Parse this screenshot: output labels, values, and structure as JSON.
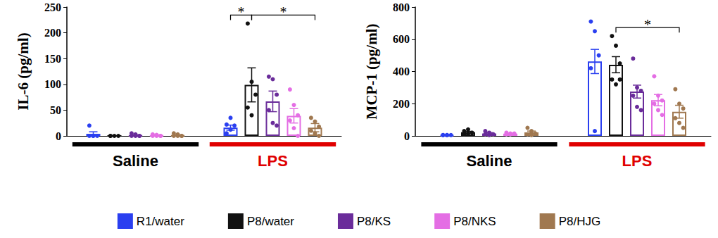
{
  "chart_data": [
    {
      "type": "bar",
      "y_label": "IL-6 (pg/ml)",
      "categories": [
        "Saline",
        "LPS"
      ],
      "ylim": [
        0,
        250
      ],
      "yticks": [
        0,
        50,
        100,
        150,
        200,
        250
      ],
      "grid": false,
      "legend": "bottom",
      "series": [
        {
          "name": "R1/water",
          "color": "#2a3ff0",
          "values": [
            4,
            16
          ],
          "errors": [
            4,
            5
          ],
          "points": [
            [
              20,
              0,
              0,
              0,
              0
            ],
            [
              5,
              12,
              20,
              22,
              35
            ]
          ]
        },
        {
          "name": "P8/water",
          "color": "#111111",
          "values": [
            0,
            99
          ],
          "errors": [
            0,
            33
          ],
          "points": [
            [
              0,
              0,
              0,
              0
            ],
            [
              218,
              105,
              80,
              55,
              40
            ]
          ]
        },
        {
          "name": "P8/KS",
          "color": "#6a2c9a",
          "values": [
            1,
            67
          ],
          "errors": [
            1,
            20
          ],
          "points": [
            [
              5,
              3,
              0,
              0,
              0,
              0
            ],
            [
              115,
              110,
              80,
              50,
              25,
              20
            ]
          ]
        },
        {
          "name": "P8/NKS",
          "color": "#e46ee4",
          "values": [
            1,
            39
          ],
          "errors": [
            1,
            14
          ],
          "points": [
            [
              3,
              2,
              0,
              0,
              0,
              0
            ],
            [
              90,
              60,
              40,
              30,
              15,
              0
            ]
          ]
        },
        {
          "name": "P8/HJG",
          "color": "#a07850",
          "values": [
            1,
            16
          ],
          "errors": [
            1,
            8
          ],
          "points": [
            [
              5,
              3,
              0,
              0,
              0,
              0
            ],
            [
              35,
              28,
              18,
              10,
              5,
              0
            ]
          ]
        }
      ],
      "annotations": [
        {
          "label": "*",
          "category": "LPS",
          "from": "R1/water",
          "to": "P8/water"
        },
        {
          "label": "*",
          "category": "LPS",
          "from": "P8/water",
          "to": "P8/HJG"
        }
      ]
    },
    {
      "type": "bar",
      "y_label": "MCP-1 (pg/ml)",
      "categories": [
        "Saline",
        "LPS"
      ],
      "ylim": [
        0,
        800
      ],
      "yticks": [
        0,
        200,
        400,
        600,
        800
      ],
      "grid": false,
      "legend": "bottom",
      "series": [
        {
          "name": "R1/water",
          "color": "#2a3ff0",
          "values": [
            5,
            462
          ],
          "errors": [
            1,
            75
          ],
          "points": [
            [
              5,
              5,
              5,
              5,
              5
            ],
            [
              710,
              650,
              500,
              420,
              30
            ]
          ]
        },
        {
          "name": "P8/water",
          "color": "#111111",
          "values": [
            23,
            442
          ],
          "errors": [
            5,
            50
          ],
          "points": [
            [
              30,
              40,
              20,
              10,
              15
            ],
            [
              620,
              560,
              450,
              350,
              320,
              350
            ]
          ]
        },
        {
          "name": "P8/KS",
          "color": "#6a2c9a",
          "values": [
            15,
            275
          ],
          "errors": [
            5,
            40
          ],
          "points": [
            [
              30,
              20,
              10,
              10,
              5
            ],
            [
              480,
              300,
              280,
              250,
              180,
              160
            ]
          ]
        },
        {
          "name": "P8/NKS",
          "color": "#e46ee4",
          "values": [
            14,
            222
          ],
          "errors": [
            3,
            35
          ],
          "points": [
            [
              20,
              15,
              15,
              10,
              10
            ],
            [
              370,
              250,
              220,
              200,
              160,
              130
            ]
          ]
        },
        {
          "name": "P8/HJG",
          "color": "#a07850",
          "values": [
            22,
            150
          ],
          "errors": [
            8,
            40
          ],
          "points": [
            [
              50,
              30,
              15,
              10,
              5
            ],
            [
              290,
              200,
              170,
              110,
              80,
              50
            ]
          ]
        }
      ],
      "annotations": [
        {
          "label": "*",
          "category": "LPS",
          "from": "P8/water",
          "to": "P8/HJG"
        }
      ]
    }
  ]
}
